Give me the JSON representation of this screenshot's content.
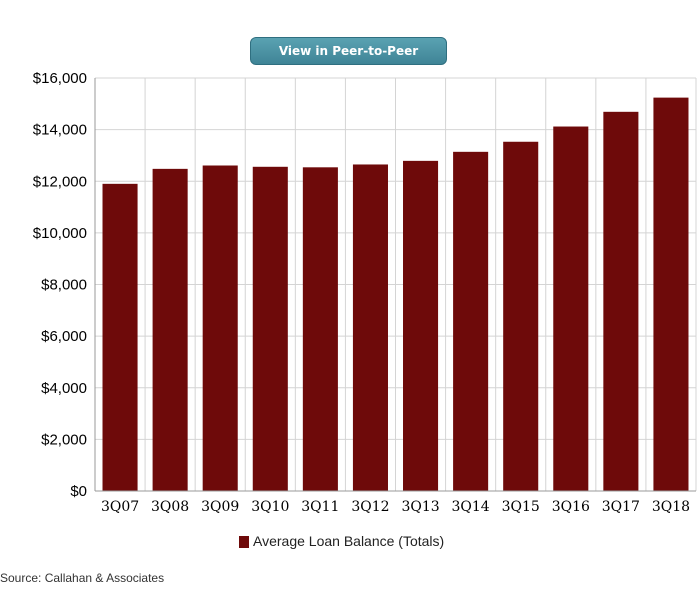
{
  "toolbar": {
    "peer_button_label": "View in Peer-to-Peer"
  },
  "source_text": "Source: Callahan & Associates",
  "colors": {
    "bar": "#6e0a0a",
    "grid": "#d4d4d4",
    "axis": "#999999",
    "button": "#4a93a4"
  },
  "chart_data": {
    "type": "bar",
    "title": "",
    "xlabel": "",
    "ylabel": "",
    "categories": [
      "3Q07",
      "3Q08",
      "3Q09",
      "3Q10",
      "3Q11",
      "3Q12",
      "3Q13",
      "3Q14",
      "3Q15",
      "3Q16",
      "3Q17",
      "3Q18"
    ],
    "series": [
      {
        "name": "Average Loan Balance (Totals)",
        "values": [
          11900,
          12480,
          12610,
          12560,
          12540,
          12650,
          12790,
          13140,
          13530,
          14120,
          14690,
          15240
        ]
      }
    ],
    "ylim": [
      0,
      16000
    ],
    "yticks": [
      0,
      2000,
      4000,
      6000,
      8000,
      10000,
      12000,
      14000,
      16000
    ],
    "ytick_labels": [
      "$0",
      "$2,000",
      "$4,000",
      "$6,000",
      "$8,000",
      "$10,000",
      "$12,000",
      "$14,000",
      "$16,000"
    ],
    "grid": true,
    "legend_position": "bottom-center"
  }
}
